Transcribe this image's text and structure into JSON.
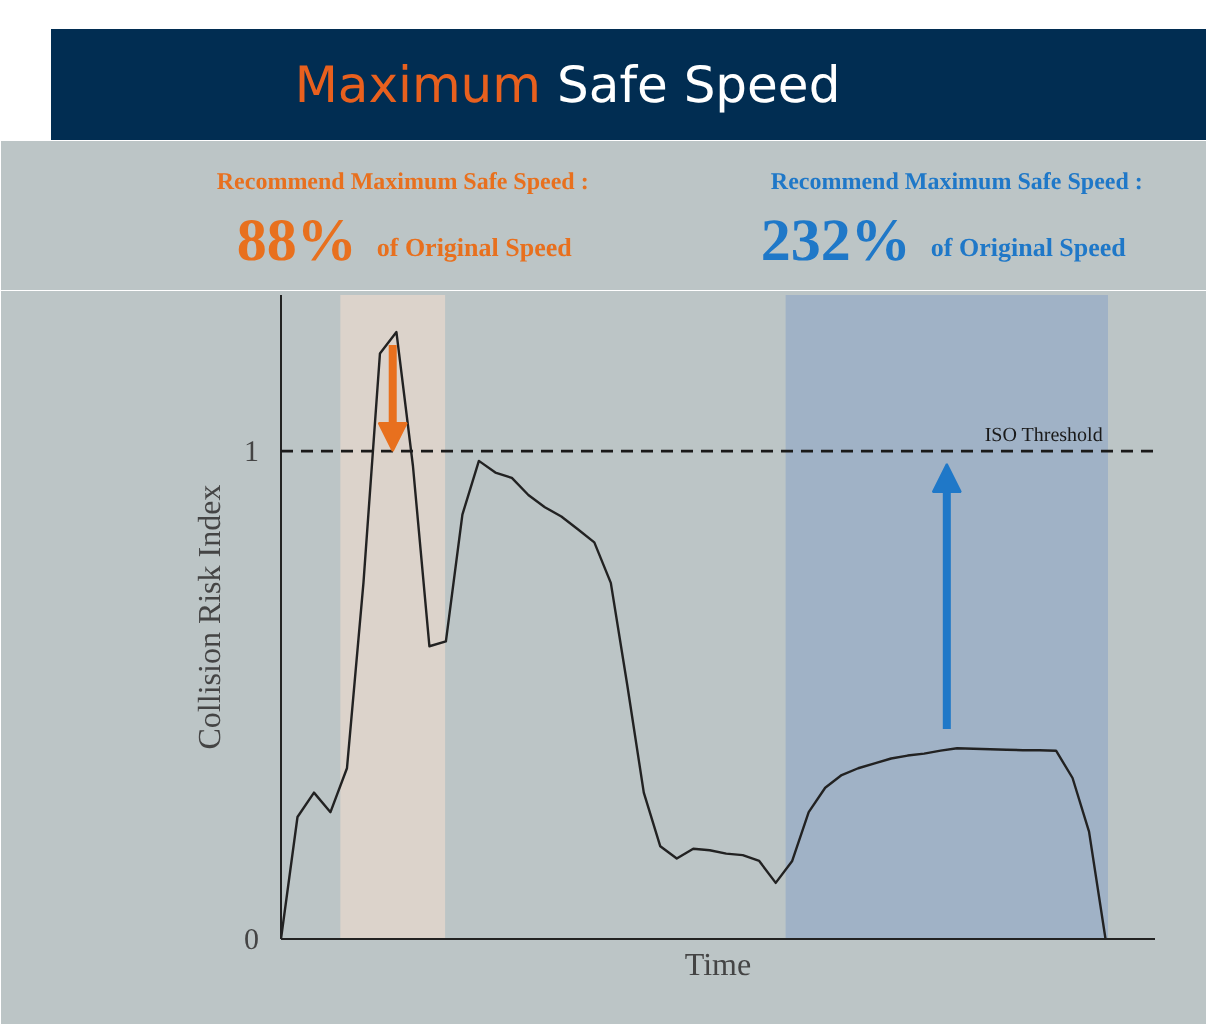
{
  "chart_data": {
    "type": "line",
    "title": "Maximum Safe Speed",
    "xlabel": "Time",
    "ylabel": "Collision Risk Index",
    "categories": [
      null,
      null,
      null,
      null,
      null,
      null,
      null,
      null,
      null,
      null,
      null,
      null,
      null,
      null,
      null,
      null,
      null,
      null,
      null,
      null,
      null,
      null,
      null,
      null,
      null,
      null,
      null,
      null,
      null,
      null,
      null,
      null,
      null,
      null,
      null,
      null,
      null,
      null,
      null,
      null,
      null,
      null,
      null,
      null,
      null,
      null,
      null,
      null,
      null,
      null,
      null
    ],
    "series": [
      {
        "color": "#222222",
        "values": [
          0,
          0.25,
          0.3,
          0.26,
          0.35,
          0.73,
          1.2,
          1.244,
          0.97,
          0.6,
          0.61,
          0.87,
          0.98,
          0.956,
          0.945,
          0.91,
          0.885,
          0.866,
          0.84,
          0.813,
          0.73,
          0.52,
          0.3,
          0.19,
          0.165,
          0.185,
          0.182,
          0.175,
          0.172,
          0.16,
          0.115,
          0.16,
          0.26,
          0.31,
          0.336,
          0.35,
          0.36,
          0.37,
          0.376,
          0.38,
          0.386,
          0.391,
          0.39,
          0.389,
          0.388,
          0.387,
          0.387,
          0.386,
          0.33,
          0.22,
          0
        ]
      }
    ],
    "ylim": [
      0,
      1.32
    ],
    "yticks": [
      0,
      1
    ],
    "tick_labels": "y",
    "grid": false,
    "ref_lines": [
      {
        "axis": "y",
        "value": 1,
        "label": "ISO Threshold",
        "color": "#1a1a1a",
        "line_style": "dashed"
      }
    ],
    "annotations": [
      "Recommend Maximum Safe Speed :",
      "88%",
      "of Original Speed",
      "Recommend Maximum Safe Speed :",
      "232%",
      "of Original Speed"
    ]
  }
}
